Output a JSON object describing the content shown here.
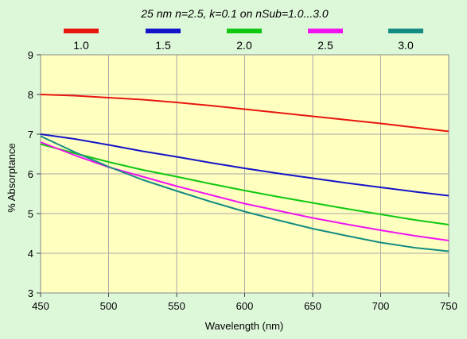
{
  "chart_data": {
    "type": "line",
    "title": "25 nm n=2.5, k=0.1 on nSub=1.0...3.0",
    "xlabel": "Wavelength (nm)",
    "ylabel": "% Absorptance",
    "xlim": [
      450,
      750
    ],
    "ylim": [
      3,
      9
    ],
    "xticks": [
      450,
      500,
      550,
      600,
      650,
      700,
      750
    ],
    "yticks": [
      3,
      4,
      5,
      6,
      7,
      8,
      9
    ],
    "grid": true,
    "legend_position": "top",
    "x": [
      450,
      475,
      500,
      525,
      550,
      575,
      600,
      625,
      650,
      675,
      700,
      725,
      750
    ],
    "series": [
      {
        "name": "1.0",
        "color": "#e8160f",
        "values": [
          8.0,
          7.97,
          7.92,
          7.87,
          7.8,
          7.72,
          7.63,
          7.54,
          7.45,
          7.36,
          7.27,
          7.17,
          7.07
        ]
      },
      {
        "name": "1.5",
        "color": "#1414c8",
        "values": [
          7.0,
          6.88,
          6.73,
          6.57,
          6.43,
          6.28,
          6.14,
          6.01,
          5.89,
          5.77,
          5.66,
          5.55,
          5.45
        ]
      },
      {
        "name": "2.0",
        "color": "#10c810",
        "values": [
          6.75,
          6.52,
          6.3,
          6.1,
          5.93,
          5.75,
          5.58,
          5.42,
          5.27,
          5.12,
          4.98,
          4.84,
          4.72
        ]
      },
      {
        "name": "2.5",
        "color": "#f014f0",
        "values": [
          6.8,
          6.47,
          6.17,
          5.93,
          5.69,
          5.47,
          5.25,
          5.07,
          4.89,
          4.73,
          4.58,
          4.44,
          4.32
        ]
      },
      {
        "name": "3.0",
        "color": "#148c82",
        "values": [
          6.95,
          6.55,
          6.18,
          5.85,
          5.57,
          5.3,
          5.05,
          4.83,
          4.62,
          4.44,
          4.27,
          4.14,
          4.05
        ]
      }
    ]
  }
}
